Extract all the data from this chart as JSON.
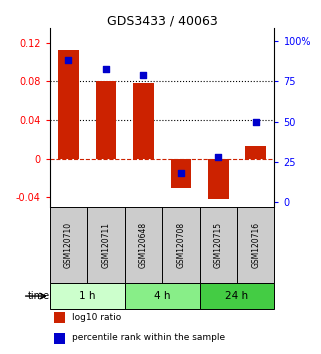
{
  "title": "GDS3433 / 40063",
  "samples": [
    "GSM120710",
    "GSM120711",
    "GSM120648",
    "GSM120708",
    "GSM120715",
    "GSM120716"
  ],
  "log10_ratio": [
    0.113,
    0.08,
    0.078,
    -0.03,
    -0.042,
    0.013
  ],
  "percentile_rank": [
    88,
    83,
    79,
    18,
    28,
    50
  ],
  "bar_color": "#cc2200",
  "dot_color": "#0000cc",
  "ylim_left": [
    -0.05,
    0.135
  ],
  "ylim_right": [
    -3,
    108
  ],
  "yticks_left": [
    -0.04,
    0.0,
    0.04,
    0.08,
    0.12
  ],
  "yticks_right": [
    0,
    25,
    50,
    75,
    100
  ],
  "ytick_labels_left": [
    "-0.04",
    "0",
    "0.04",
    "0.08",
    "0.12"
  ],
  "ytick_labels_right": [
    "0",
    "25",
    "50",
    "75",
    "100%"
  ],
  "hlines": [
    0.04,
    0.08
  ],
  "time_groups": [
    {
      "label": "1 h",
      "indices": [
        0,
        1
      ],
      "color": "#ccffcc"
    },
    {
      "label": "4 h",
      "indices": [
        2,
        3
      ],
      "color": "#88ee88"
    },
    {
      "label": "24 h",
      "indices": [
        4,
        5
      ],
      "color": "#44cc44"
    }
  ],
  "legend_items": [
    {
      "label": "log10 ratio",
      "color": "#cc2200"
    },
    {
      "label": "percentile rank within the sample",
      "color": "#0000cc"
    }
  ],
  "bg_color": "#ffffff",
  "sample_box_color": "#cccccc",
  "bar_width": 0.55
}
